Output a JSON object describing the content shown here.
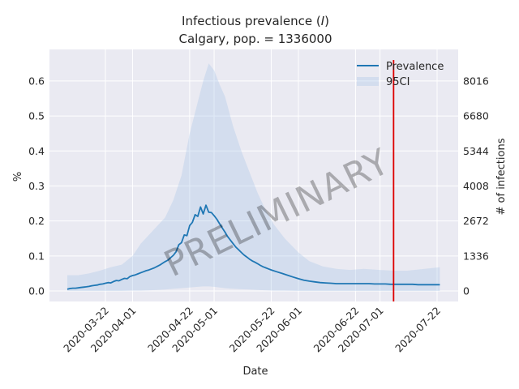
{
  "chart_data": {
    "type": "line",
    "title": "Infectious prevalence (I)",
    "title_parts": [
      "Infectious prevalence (",
      "I",
      ")"
    ],
    "subtitle": "Calgary, pop. = 1336000",
    "xlabel": "Date",
    "ylabel": "%",
    "ylabel_right": "# of infections",
    "watermark": "PRELIMINARY",
    "ylim": [
      -0.03,
      0.69
    ],
    "y_ticks": [
      0.0,
      0.1,
      0.2,
      0.3,
      0.4,
      0.5,
      0.6
    ],
    "y_tick_labels": [
      "0.0",
      "0.1",
      "0.2",
      "0.3",
      "0.4",
      "0.5",
      "0.6"
    ],
    "y2_ticks": [
      0,
      1336,
      2672,
      4008,
      5344,
      6680,
      8016
    ],
    "y2_tick_labels": [
      "0",
      "1336",
      "2672",
      "4008",
      "5344",
      "6680",
      "8016"
    ],
    "x_start": "2020-03-08",
    "x_end": "2020-07-22",
    "x_ticks": [
      "2020-03-22",
      "2020-04-01",
      "2020-04-22",
      "2020-05-01",
      "2020-05-22",
      "2020-06-01",
      "2020-06-22",
      "2020-07-01",
      "2020-07-22"
    ],
    "vline_date": "2020-07-06",
    "legend": {
      "position": "top-right",
      "entries": [
        "Prevalence",
        "95CI"
      ]
    },
    "colors": {
      "line": "#1f77b4",
      "ci": "#a9c6e8",
      "vline": "#dd0000",
      "plot_bg": "#eaeaf2",
      "grid": "#ffffff"
    },
    "series": [
      {
        "name": "Prevalence",
        "x": [
          "2020-03-08",
          "2020-03-09",
          "2020-03-10",
          "2020-03-11",
          "2020-03-12",
          "2020-03-13",
          "2020-03-14",
          "2020-03-15",
          "2020-03-16",
          "2020-03-17",
          "2020-03-18",
          "2020-03-19",
          "2020-03-20",
          "2020-03-21",
          "2020-03-22",
          "2020-03-23",
          "2020-03-24",
          "2020-03-25",
          "2020-03-26",
          "2020-03-27",
          "2020-03-28",
          "2020-03-29",
          "2020-03-30",
          "2020-03-31",
          "2020-04-01",
          "2020-04-02",
          "2020-04-03",
          "2020-04-04",
          "2020-04-05",
          "2020-04-06",
          "2020-04-07",
          "2020-04-08",
          "2020-04-09",
          "2020-04-10",
          "2020-04-11",
          "2020-04-12",
          "2020-04-13",
          "2020-04-14",
          "2020-04-15",
          "2020-04-16",
          "2020-04-17",
          "2020-04-18",
          "2020-04-19",
          "2020-04-20",
          "2020-04-21",
          "2020-04-22",
          "2020-04-23",
          "2020-04-24",
          "2020-04-25",
          "2020-04-26",
          "2020-04-27",
          "2020-04-28",
          "2020-04-29",
          "2020-04-30",
          "2020-05-01",
          "2020-05-02",
          "2020-05-03",
          "2020-05-04",
          "2020-05-05",
          "2020-05-06",
          "2020-05-07",
          "2020-05-08",
          "2020-05-09",
          "2020-05-10",
          "2020-05-11",
          "2020-05-12",
          "2020-05-13",
          "2020-05-14",
          "2020-05-15",
          "2020-05-16",
          "2020-05-17",
          "2020-05-18",
          "2020-05-19",
          "2020-05-20",
          "2020-05-21",
          "2020-05-22",
          "2020-05-24",
          "2020-05-26",
          "2020-05-28",
          "2020-05-30",
          "2020-06-01",
          "2020-06-03",
          "2020-06-05",
          "2020-06-07",
          "2020-06-09",
          "2020-06-11",
          "2020-06-13",
          "2020-06-15",
          "2020-06-17",
          "2020-06-19",
          "2020-06-21",
          "2020-06-23",
          "2020-06-25",
          "2020-06-27",
          "2020-06-29",
          "2020-07-01",
          "2020-07-03",
          "2020-07-05",
          "2020-07-07",
          "2020-07-09",
          "2020-07-11",
          "2020-07-13",
          "2020-07-15",
          "2020-07-17",
          "2020-07-19",
          "2020-07-21",
          "2020-07-23"
        ],
        "values": [
          0.005,
          0.007,
          0.008,
          0.008,
          0.009,
          0.01,
          0.011,
          0.012,
          0.013,
          0.015,
          0.016,
          0.017,
          0.019,
          0.02,
          0.022,
          0.024,
          0.023,
          0.027,
          0.03,
          0.029,
          0.033,
          0.036,
          0.035,
          0.041,
          0.044,
          0.046,
          0.049,
          0.052,
          0.055,
          0.058,
          0.06,
          0.063,
          0.066,
          0.07,
          0.074,
          0.079,
          0.084,
          0.088,
          0.095,
          0.102,
          0.112,
          0.132,
          0.138,
          0.16,
          0.158,
          0.187,
          0.196,
          0.218,
          0.213,
          0.24,
          0.22,
          0.245,
          0.225,
          0.224,
          0.215,
          0.205,
          0.192,
          0.18,
          0.168,
          0.155,
          0.145,
          0.135,
          0.125,
          0.118,
          0.11,
          0.103,
          0.097,
          0.091,
          0.086,
          0.082,
          0.078,
          0.073,
          0.069,
          0.066,
          0.063,
          0.06,
          0.055,
          0.05,
          0.045,
          0.04,
          0.035,
          0.031,
          0.028,
          0.026,
          0.024,
          0.023,
          0.022,
          0.021,
          0.021,
          0.021,
          0.021,
          0.021,
          0.021,
          0.021,
          0.02,
          0.02,
          0.02,
          0.019,
          0.019,
          0.019,
          0.019,
          0.019,
          0.018,
          0.018,
          0.018,
          0.018,
          0.018
        ]
      },
      {
        "name": "95CI",
        "x": [
          "2020-03-08",
          "2020-03-12",
          "2020-03-16",
          "2020-03-20",
          "2020-03-24",
          "2020-03-28",
          "2020-04-01",
          "2020-04-04",
          "2020-04-07",
          "2020-04-10",
          "2020-04-13",
          "2020-04-16",
          "2020-04-19",
          "2020-04-22",
          "2020-04-25",
          "2020-04-27",
          "2020-04-29",
          "2020-05-01",
          "2020-05-03",
          "2020-05-05",
          "2020-05-08",
          "2020-05-11",
          "2020-05-14",
          "2020-05-17",
          "2020-05-20",
          "2020-05-23",
          "2020-05-27",
          "2020-06-01",
          "2020-06-05",
          "2020-06-10",
          "2020-06-15",
          "2020-06-20",
          "2020-06-25",
          "2020-07-01",
          "2020-07-06",
          "2020-07-11",
          "2020-07-16",
          "2020-07-23"
        ],
        "upper": [
          0.045,
          0.045,
          0.05,
          0.058,
          0.068,
          0.075,
          0.1,
          0.135,
          0.16,
          0.185,
          0.21,
          0.26,
          0.33,
          0.45,
          0.54,
          0.6,
          0.65,
          0.63,
          0.59,
          0.555,
          0.47,
          0.4,
          0.34,
          0.28,
          0.23,
          0.19,
          0.15,
          0.11,
          0.085,
          0.07,
          0.063,
          0.06,
          0.063,
          0.06,
          0.058,
          0.058,
          0.062,
          0.068
        ],
        "lower": [
          0.0,
          0.0,
          0.0,
          0.0,
          0.0,
          0.0,
          0.001,
          0.001,
          0.002,
          0.003,
          0.004,
          0.006,
          0.008,
          0.01,
          0.012,
          0.013,
          0.013,
          0.012,
          0.01,
          0.008,
          0.006,
          0.005,
          0.004,
          0.003,
          0.002,
          0.001,
          0.001,
          0.0,
          0.0,
          0.0,
          0.0,
          0.0,
          0.0,
          0.0,
          0.0,
          0.0,
          0.0,
          0.0
        ]
      }
    ]
  }
}
